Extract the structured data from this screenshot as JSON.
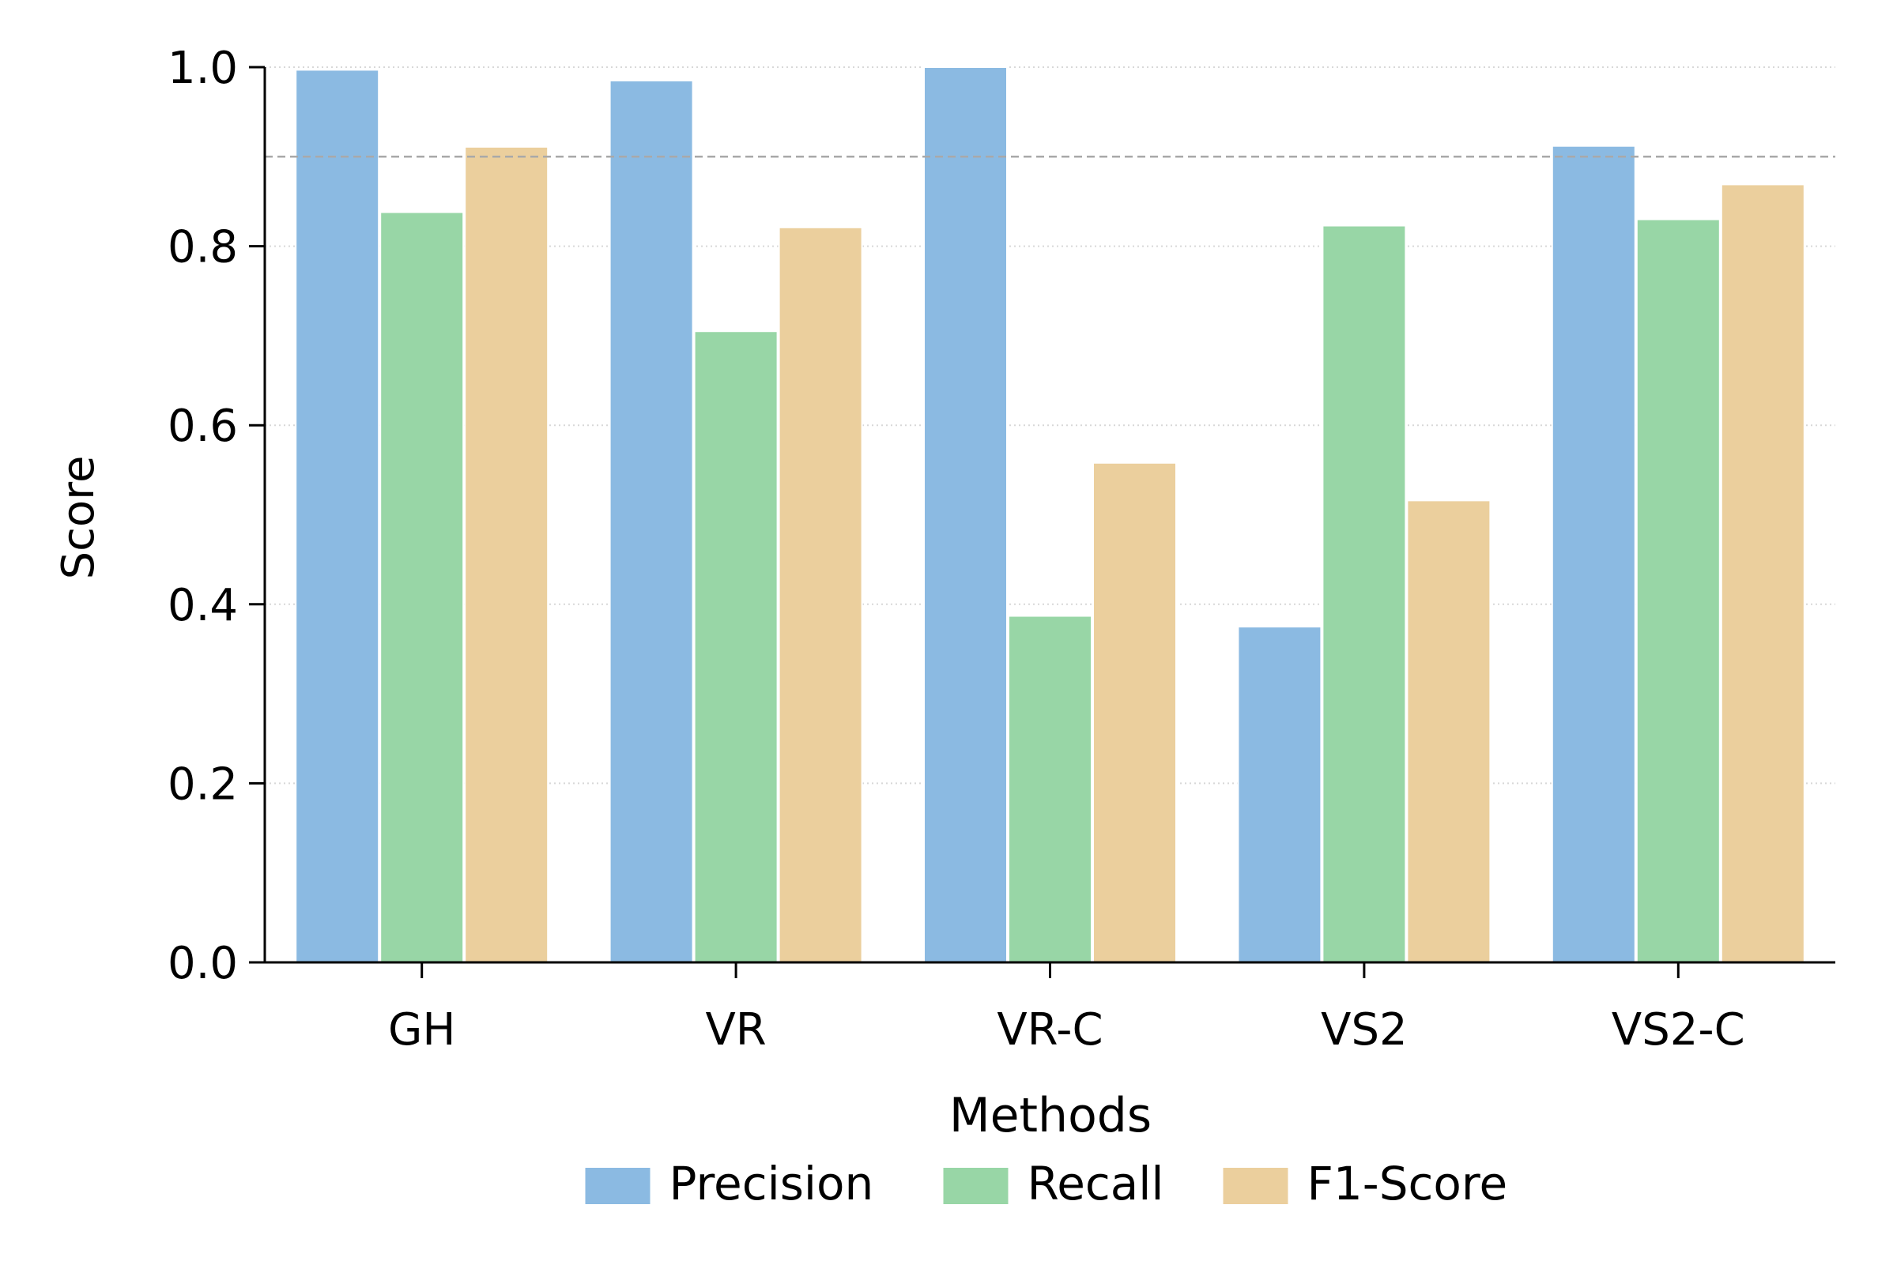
{
  "chart_data": {
    "type": "bar",
    "title": "",
    "xlabel": "Methods",
    "ylabel": "Score",
    "ylim": [
      0,
      1.0
    ],
    "yticks": [
      "0.0",
      "0.2",
      "0.4",
      "0.6",
      "0.8",
      "1.0"
    ],
    "grid": "horizontal dotted",
    "reference_line": {
      "value": 0.9,
      "style": "dashed"
    },
    "legend_position": "bottom-center",
    "categories": [
      "GH",
      "VR",
      "VR-C",
      "VS2",
      "VS2-C"
    ],
    "series": [
      {
        "name": "Precision",
        "color": "#8bbae2",
        "values": [
          0.997,
          0.985,
          1.0,
          0.375,
          0.912
        ]
      },
      {
        "name": "Recall",
        "color": "#98d6a6",
        "values": [
          0.838,
          0.705,
          0.387,
          0.823,
          0.83
        ]
      },
      {
        "name": "F1-Score",
        "color": "#ebcf9d",
        "values": [
          0.911,
          0.821,
          0.558,
          0.516,
          0.869
        ]
      }
    ]
  }
}
